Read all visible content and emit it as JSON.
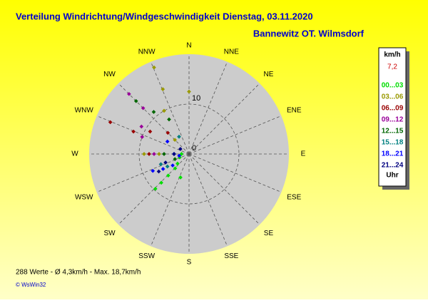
{
  "chart_data": {
    "type": "windrose",
    "title": "Verteilung Windrichtung/Windgeschwindigkeit  Dienstag, 03.11.2020",
    "subtitle": "Bannewitz OT. Wilmsdorf",
    "directions": [
      "N",
      "NNE",
      "NE",
      "ENE",
      "E",
      "ESE",
      "SE",
      "SSE",
      "S",
      "SSW",
      "SW",
      "WSW",
      "W",
      "WNW",
      "NW",
      "NNW"
    ],
    "rlim": [
      0,
      20
    ],
    "rticks": [
      0,
      10
    ],
    "legend_unit": "km/h",
    "current_value": "7,2",
    "legend_footer": "Uhr",
    "series": [
      {
        "name": "00...03",
        "color": "#00dd00",
        "dir": [
          224,
          224,
          224,
          224,
          230,
          200,
          250,
          270
        ],
        "values": [
          9.7,
          8,
          6,
          4,
          3,
          5,
          2,
          1.5
        ]
      },
      {
        "name": "03...06",
        "color": "#999900",
        "dir": [
          338,
          338,
          0,
          330,
          270,
          270,
          315
        ],
        "values": [
          18.7,
          14,
          12.5,
          10,
          9,
          6,
          4
        ]
      },
      {
        "name": "06...09",
        "color": "#990000",
        "dir": [
          292,
          292,
          300,
          315,
          270
        ],
        "values": [
          17,
          12,
          9,
          6,
          8
        ]
      },
      {
        "name": "09...12",
        "color": "#990099",
        "dir": [
          315,
          315,
          300,
          290,
          270,
          250
        ],
        "values": [
          17,
          13,
          11,
          10,
          7,
          6
        ]
      },
      {
        "name": "12...15",
        "color": "#006600",
        "dir": [
          315,
          320,
          330,
          270,
          250
        ],
        "values": [
          15,
          11,
          8,
          5,
          3
        ]
      },
      {
        "name": "15...18",
        "color": "#008080",
        "dir": [
          250,
          240,
          330,
          270
        ],
        "values": [
          6,
          5,
          4,
          3
        ]
      },
      {
        "name": "18...21",
        "color": "#0000ff",
        "dir": [
          245,
          240,
          235,
          300,
          270,
          260
        ],
        "values": [
          8,
          6,
          4,
          5,
          3,
          2
        ]
      },
      {
        "name": "21...24",
        "color": "#000080",
        "dir": [
          240,
          250,
          270,
          300
        ],
        "values": [
          7,
          5,
          3,
          2
        ]
      }
    ],
    "footer": "288 Werte   -   Ø 4,3km/h   -   Max. 18,7km/h",
    "copyright": "© WsWin32"
  }
}
